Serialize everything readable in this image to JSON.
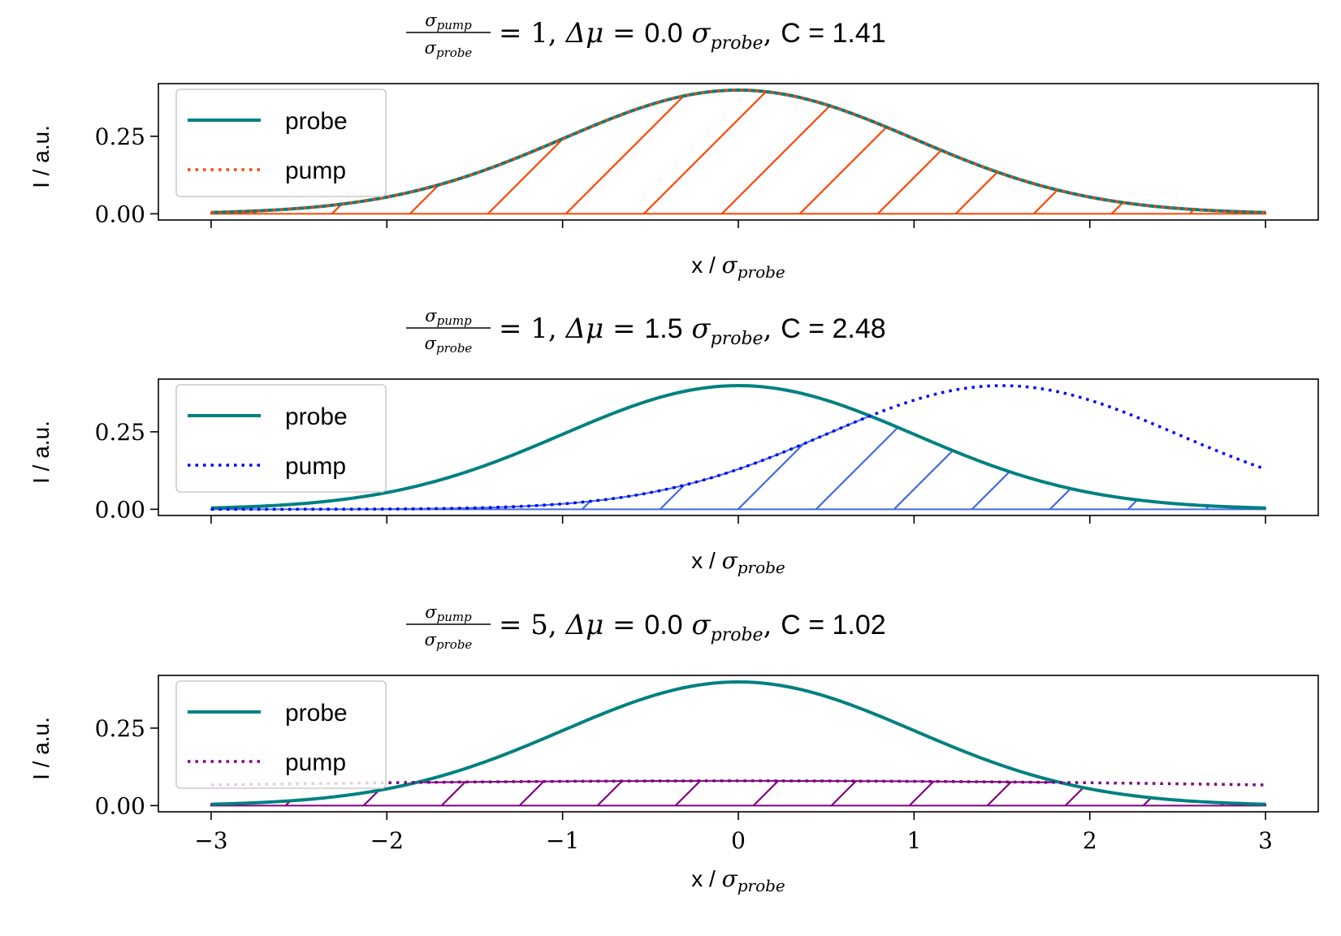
{
  "chart_data": [
    {
      "type": "line",
      "title": {
        "frac_num": "σpump",
        "frac_den": "σprobe",
        "ratio": "= 1,",
        "delta_mu_label": "Δμ =",
        "delta_mu_value": "0.0",
        "delta_mu_unit": "σprobe,",
        "c_label": "C =",
        "c_value": "1.41"
      },
      "xlabel": "x / σprobe",
      "ylabel": "I / a.u.",
      "xlim": [
        -3.3,
        3.3
      ],
      "ylim": [
        -0.02,
        0.42
      ],
      "xticks": [
        -3,
        -2,
        -1,
        0,
        1,
        2,
        3
      ],
      "yticks": [
        0.0,
        0.25
      ],
      "ytick_labels": [
        "0.00",
        "0.25"
      ],
      "show_xtick_labels": false,
      "legend_position": "upper-left",
      "probe": {
        "name": "probe",
        "mu": 0,
        "sigma": 1,
        "color": "#008080",
        "style": "solid"
      },
      "pump": {
        "name": "pump",
        "mu": 0.0,
        "sigma": 1,
        "color": "#FF4500",
        "style": "dotted"
      },
      "overlap_color": "#FF4500",
      "x_range": [
        -3,
        3
      ]
    },
    {
      "type": "line",
      "title": {
        "frac_num": "σpump",
        "frac_den": "σprobe",
        "ratio": "= 1,",
        "delta_mu_label": "Δμ =",
        "delta_mu_value": "1.5",
        "delta_mu_unit": "σprobe,",
        "c_label": "C =",
        "c_value": "2.48"
      },
      "xlabel": "x / σprobe",
      "ylabel": "I / a.u.",
      "xlim": [
        -3.3,
        3.3
      ],
      "ylim": [
        -0.02,
        0.42
      ],
      "xticks": [
        -3,
        -2,
        -1,
        0,
        1,
        2,
        3
      ],
      "yticks": [
        0.0,
        0.25
      ],
      "ytick_labels": [
        "0.00",
        "0.25"
      ],
      "show_xtick_labels": false,
      "legend_position": "upper-left",
      "probe": {
        "name": "probe",
        "mu": 0,
        "sigma": 1,
        "color": "#008080",
        "style": "solid"
      },
      "pump": {
        "name": "pump",
        "mu": 1.5,
        "sigma": 1,
        "color": "#0000FF",
        "style": "dotted"
      },
      "overlap_color": "#4169E1",
      "x_range": [
        -3,
        3
      ]
    },
    {
      "type": "line",
      "title": {
        "frac_num": "σpump",
        "frac_den": "σprobe",
        "ratio": "= 5,",
        "delta_mu_label": "Δμ =",
        "delta_mu_value": "0.0",
        "delta_mu_unit": "σprobe,",
        "c_label": "C =",
        "c_value": "1.02"
      },
      "xlabel": "x / σprobe",
      "ylabel": "I / a.u.",
      "xlim": [
        -3.3,
        3.3
      ],
      "ylim": [
        -0.02,
        0.42
      ],
      "xticks": [
        -3,
        -2,
        -1,
        0,
        1,
        2,
        3
      ],
      "xtick_labels": [
        "−3",
        "−2",
        "−1",
        "0",
        "1",
        "2",
        "3"
      ],
      "yticks": [
        0.0,
        0.25
      ],
      "ytick_labels": [
        "0.00",
        "0.25"
      ],
      "show_xtick_labels": true,
      "legend_position": "upper-left",
      "probe": {
        "name": "probe",
        "mu": 0,
        "sigma": 1,
        "color": "#008080",
        "style": "solid"
      },
      "pump": {
        "name": "pump",
        "mu": 0.0,
        "sigma": 5,
        "color": "#800080",
        "style": "dotted"
      },
      "overlap_color": "#800080",
      "x_range": [
        -3,
        3
      ]
    }
  ]
}
